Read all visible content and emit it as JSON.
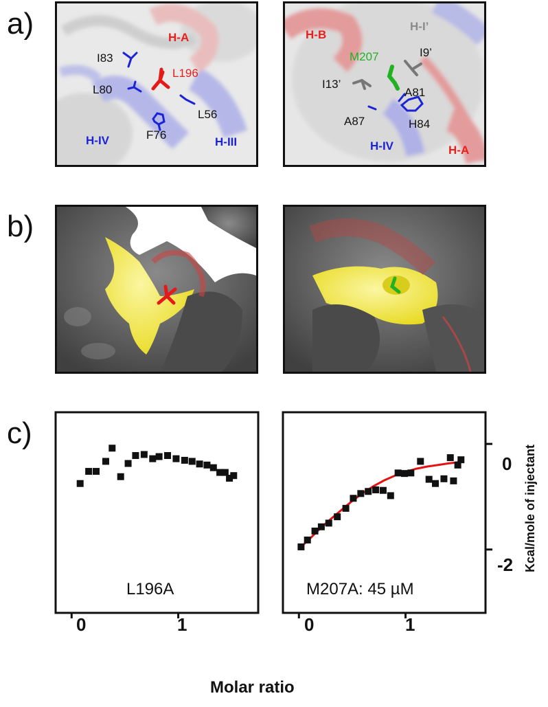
{
  "panels": {
    "a": "a)",
    "b": "b)",
    "c": "c)"
  },
  "a_left": {
    "labels": {
      "ha": "H-A",
      "i83": "I83",
      "l196": "L196",
      "l80": "L80",
      "l56": "L56",
      "f76": "F76",
      "hiv": "H-IV",
      "hiii": "H-III"
    }
  },
  "a_right": {
    "labels": {
      "hb": "H-B",
      "hi_prime": "H-I’",
      "m207": "M207",
      "i9": "I9’",
      "i13": "I13’",
      "a81": "A81",
      "a87": "A87",
      "h84": "H84",
      "hiv": "H-IV",
      "ha": "H-A"
    }
  },
  "colors": {
    "red": "#e8201c",
    "blue": "#1a23d6",
    "green": "#22b122",
    "gray": "#8a8a8a",
    "yellow": "#f2ea2a",
    "surface": "#5e5e5e",
    "fit_line": "#e41212"
  },
  "chart_data": [
    {
      "type": "scatter",
      "label": "L196A",
      "xticks": [
        "0",
        "1"
      ],
      "xlim": [
        -0.15,
        1.75
      ],
      "ylim": [
        -3.2,
        0.6
      ],
      "points": [
        [
          0.08,
          -0.75
        ],
        [
          0.16,
          -0.52
        ],
        [
          0.23,
          -0.52
        ],
        [
          0.32,
          -0.33
        ],
        [
          0.38,
          -0.08
        ],
        [
          0.46,
          -0.62
        ],
        [
          0.53,
          -0.37
        ],
        [
          0.6,
          -0.22
        ],
        [
          0.68,
          -0.2
        ],
        [
          0.76,
          -0.28
        ],
        [
          0.82,
          -0.24
        ],
        [
          0.9,
          -0.22
        ],
        [
          0.98,
          -0.28
        ],
        [
          1.06,
          -0.31
        ],
        [
          1.13,
          -0.33
        ],
        [
          1.2,
          -0.38
        ],
        [
          1.27,
          -0.4
        ],
        [
          1.33,
          -0.45
        ],
        [
          1.39,
          -0.54
        ],
        [
          1.44,
          -0.54
        ],
        [
          1.48,
          -0.65
        ],
        [
          1.52,
          -0.6
        ]
      ]
    },
    {
      "type": "scatter",
      "label": "M207A: 45 µM",
      "xticks": [
        "0",
        "1"
      ],
      "yticks": [
        "0",
        "-2"
      ],
      "ylabel": "Kcal/mole of injectant",
      "xlim": [
        -0.15,
        1.75
      ],
      "ylim": [
        -3.2,
        0.6
      ],
      "points": [
        [
          0.02,
          -1.95
        ],
        [
          0.08,
          -1.82
        ],
        [
          0.15,
          -1.65
        ],
        [
          0.21,
          -1.57
        ],
        [
          0.28,
          -1.5
        ],
        [
          0.36,
          -1.38
        ],
        [
          0.44,
          -1.22
        ],
        [
          0.51,
          -1.03
        ],
        [
          0.58,
          -0.94
        ],
        [
          0.65,
          -0.9
        ],
        [
          0.72,
          -0.87
        ],
        [
          0.79,
          -0.88
        ],
        [
          0.86,
          -0.98
        ],
        [
          0.93,
          -0.55
        ],
        [
          0.99,
          -0.56
        ],
        [
          1.05,
          -0.55
        ],
        [
          1.14,
          -0.33
        ],
        [
          1.22,
          -0.67
        ],
        [
          1.28,
          -0.75
        ],
        [
          1.36,
          -0.66
        ],
        [
          1.42,
          -0.26
        ],
        [
          1.45,
          -0.7
        ],
        [
          1.49,
          -0.4
        ],
        [
          1.52,
          -0.3
        ]
      ],
      "fit": [
        [
          0.02,
          -1.95
        ],
        [
          0.1,
          -1.8
        ],
        [
          0.2,
          -1.6
        ],
        [
          0.3,
          -1.42
        ],
        [
          0.4,
          -1.25
        ],
        [
          0.5,
          -1.08
        ],
        [
          0.6,
          -0.93
        ],
        [
          0.7,
          -0.8
        ],
        [
          0.8,
          -0.69
        ],
        [
          0.9,
          -0.6
        ],
        [
          1.0,
          -0.53
        ],
        [
          1.1,
          -0.47
        ],
        [
          1.2,
          -0.43
        ],
        [
          1.3,
          -0.4
        ],
        [
          1.4,
          -0.37
        ],
        [
          1.52,
          -0.34
        ]
      ]
    }
  ],
  "shared_xlabel": "Molar ratio"
}
